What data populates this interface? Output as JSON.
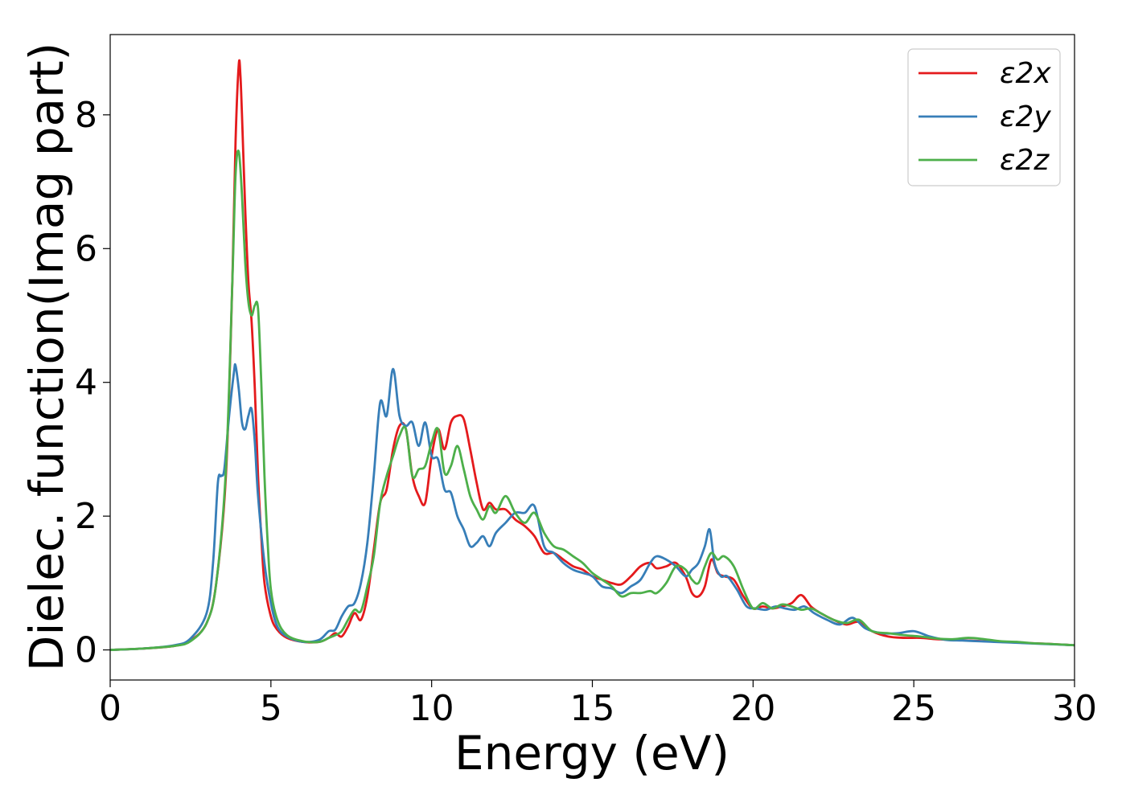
{
  "chart_data": {
    "type": "line",
    "title": "",
    "xlabel": "Energy (eV)",
    "ylabel": "Dielec. function(Imag part)",
    "xlim": [
      0,
      30
    ],
    "ylim": [
      -0.45,
      9.2
    ],
    "xticks": [
      0,
      5,
      10,
      15,
      20,
      25,
      30
    ],
    "yticks": [
      0,
      2,
      4,
      6,
      8
    ],
    "grid": false,
    "legend_position": "top-right",
    "series": [
      {
        "name": "ε2x",
        "color": "#e41a1c",
        "x": [
          0,
          1,
          2,
          2.5,
          3,
          3.3,
          3.6,
          3.8,
          3.9,
          4.0,
          4.05,
          4.1,
          4.2,
          4.3,
          4.4,
          4.5,
          4.6,
          4.7,
          4.8,
          5.0,
          5.2,
          5.5,
          6.0,
          6.5,
          6.8,
          7.0,
          7.2,
          7.4,
          7.6,
          7.8,
          8.0,
          8.2,
          8.4,
          8.6,
          8.8,
          9.0,
          9.2,
          9.4,
          9.6,
          9.8,
          10.0,
          10.2,
          10.4,
          10.6,
          10.8,
          11.0,
          11.2,
          11.4,
          11.6,
          11.8,
          12.0,
          12.3,
          12.6,
          12.9,
          13.2,
          13.5,
          13.8,
          14.1,
          14.4,
          14.7,
          15.0,
          15.3,
          15.6,
          15.9,
          16.2,
          16.5,
          16.8,
          17.0,
          17.3,
          17.6,
          17.9,
          18.1,
          18.3,
          18.5,
          18.7,
          18.9,
          19.1,
          19.4,
          19.7,
          20.0,
          20.3,
          20.6,
          20.9,
          21.2,
          21.5,
          21.8,
          22.1,
          22.5,
          22.9,
          23.3,
          23.7,
          24.2,
          24.7,
          25.2,
          25.7,
          26.2,
          26.7,
          27.2,
          27.7,
          28.2,
          28.7,
          29.2,
          29.6,
          30.0
        ],
        "values": [
          0.0,
          0.02,
          0.06,
          0.14,
          0.4,
          1.0,
          2.6,
          5.5,
          7.6,
          8.75,
          8.6,
          8.0,
          6.6,
          5.5,
          4.9,
          3.9,
          2.6,
          1.7,
          1.0,
          0.5,
          0.3,
          0.18,
          0.12,
          0.12,
          0.18,
          0.25,
          0.2,
          0.35,
          0.55,
          0.45,
          0.8,
          1.5,
          2.2,
          2.4,
          3.0,
          3.35,
          3.3,
          2.6,
          2.3,
          2.2,
          2.9,
          3.3,
          3.0,
          3.4,
          3.5,
          3.45,
          3.0,
          2.5,
          2.1,
          2.2,
          2.1,
          2.1,
          1.95,
          1.85,
          1.7,
          1.45,
          1.45,
          1.35,
          1.25,
          1.2,
          1.1,
          1.05,
          1.0,
          0.98,
          1.1,
          1.25,
          1.3,
          1.22,
          1.25,
          1.3,
          1.1,
          0.85,
          0.8,
          0.95,
          1.35,
          1.15,
          1.1,
          1.05,
          0.8,
          0.62,
          0.65,
          0.62,
          0.65,
          0.7,
          0.82,
          0.65,
          0.55,
          0.45,
          0.38,
          0.42,
          0.28,
          0.2,
          0.18,
          0.18,
          0.16,
          0.15,
          0.14,
          0.13,
          0.12,
          0.11,
          0.1,
          0.09,
          0.08,
          0.07
        ]
      },
      {
        "name": "ε2y",
        "color": "#377eb8",
        "x": [
          0,
          1,
          2,
          2.5,
          3,
          3.2,
          3.35,
          3.45,
          3.55,
          3.7,
          3.85,
          3.9,
          4.0,
          4.1,
          4.2,
          4.3,
          4.4,
          4.5,
          4.6,
          4.8,
          5.0,
          5.2,
          5.5,
          6.0,
          6.5,
          6.8,
          7.0,
          7.2,
          7.4,
          7.6,
          7.8,
          8.0,
          8.2,
          8.4,
          8.6,
          8.8,
          9.0,
          9.2,
          9.4,
          9.6,
          9.8,
          10.0,
          10.2,
          10.4,
          10.6,
          10.8,
          11.0,
          11.2,
          11.4,
          11.6,
          11.8,
          12.0,
          12.3,
          12.6,
          12.9,
          13.2,
          13.5,
          13.8,
          14.1,
          14.4,
          14.7,
          15.0,
          15.3,
          15.6,
          15.9,
          16.2,
          16.5,
          16.8,
          17.0,
          17.3,
          17.6,
          17.9,
          18.1,
          18.3,
          18.5,
          18.65,
          18.8,
          19.0,
          19.2,
          19.5,
          19.8,
          20.1,
          20.4,
          20.7,
          21.0,
          21.3,
          21.6,
          21.9,
          22.3,
          22.7,
          23.1,
          23.5,
          24.0,
          24.5,
          25.0,
          25.5,
          26.0,
          26.5,
          27.0,
          27.5,
          28.0,
          28.5,
          29.0,
          29.5,
          30.0
        ],
        "values": [
          0.0,
          0.02,
          0.07,
          0.17,
          0.55,
          1.3,
          2.5,
          2.6,
          2.7,
          3.5,
          4.15,
          4.25,
          3.9,
          3.4,
          3.3,
          3.5,
          3.6,
          3.1,
          2.3,
          1.3,
          0.7,
          0.35,
          0.2,
          0.12,
          0.15,
          0.28,
          0.3,
          0.5,
          0.65,
          0.7,
          1.0,
          1.6,
          2.6,
          3.7,
          3.5,
          4.2,
          3.5,
          3.35,
          3.4,
          3.05,
          3.4,
          2.9,
          2.85,
          2.4,
          2.35,
          2.0,
          1.8,
          1.55,
          1.6,
          1.7,
          1.55,
          1.75,
          1.9,
          2.05,
          2.05,
          2.15,
          1.55,
          1.45,
          1.3,
          1.2,
          1.15,
          1.1,
          0.95,
          0.92,
          0.85,
          0.95,
          1.05,
          1.3,
          1.4,
          1.35,
          1.25,
          1.1,
          1.2,
          1.3,
          1.55,
          1.8,
          1.3,
          1.1,
          1.1,
          0.9,
          0.65,
          0.62,
          0.6,
          0.65,
          0.62,
          0.6,
          0.65,
          0.55,
          0.45,
          0.38,
          0.48,
          0.32,
          0.25,
          0.25,
          0.28,
          0.2,
          0.15,
          0.14,
          0.13,
          0.12,
          0.11,
          0.1,
          0.09,
          0.08,
          0.07
        ]
      },
      {
        "name": "ε2z",
        "color": "#4daf4a",
        "x": [
          0,
          1,
          2,
          2.5,
          3,
          3.3,
          3.6,
          3.8,
          3.9,
          4.0,
          4.1,
          4.2,
          4.3,
          4.4,
          4.5,
          4.6,
          4.7,
          4.8,
          4.9,
          5.0,
          5.2,
          5.5,
          6.0,
          6.5,
          6.8,
          7.0,
          7.2,
          7.4,
          7.6,
          7.8,
          8.0,
          8.2,
          8.4,
          8.6,
          8.8,
          9.0,
          9.2,
          9.4,
          9.6,
          9.8,
          10.0,
          10.2,
          10.4,
          10.6,
          10.8,
          11.0,
          11.2,
          11.4,
          11.6,
          11.8,
          12.0,
          12.3,
          12.6,
          12.9,
          13.2,
          13.5,
          13.8,
          14.1,
          14.4,
          14.7,
          15.0,
          15.3,
          15.6,
          15.9,
          16.2,
          16.5,
          16.8,
          17.0,
          17.3,
          17.6,
          17.9,
          18.1,
          18.3,
          18.5,
          18.7,
          18.9,
          19.1,
          19.4,
          19.7,
          20.0,
          20.3,
          20.6,
          20.9,
          21.2,
          21.5,
          21.8,
          22.1,
          22.5,
          22.9,
          23.3,
          23.7,
          24.2,
          24.7,
          25.2,
          25.7,
          26.2,
          26.7,
          27.2,
          27.7,
          28.2,
          28.7,
          29.2,
          29.6,
          30.0
        ],
        "values": [
          0.0,
          0.02,
          0.06,
          0.13,
          0.4,
          1.0,
          2.7,
          5.5,
          7.1,
          7.45,
          6.8,
          5.8,
          5.2,
          5.0,
          5.15,
          5.1,
          4.0,
          2.6,
          1.6,
          0.9,
          0.45,
          0.22,
          0.13,
          0.12,
          0.18,
          0.22,
          0.28,
          0.45,
          0.6,
          0.58,
          0.95,
          1.4,
          2.2,
          2.6,
          2.9,
          3.2,
          3.3,
          2.6,
          2.7,
          2.75,
          3.1,
          3.3,
          2.65,
          2.75,
          3.05,
          2.7,
          2.3,
          2.1,
          1.95,
          2.15,
          2.05,
          2.3,
          2.05,
          1.9,
          2.05,
          1.75,
          1.55,
          1.5,
          1.4,
          1.3,
          1.15,
          1.05,
          0.95,
          0.8,
          0.85,
          0.85,
          0.88,
          0.85,
          1.0,
          1.25,
          1.2,
          1.05,
          1.0,
          1.25,
          1.45,
          1.35,
          1.4,
          1.25,
          0.9,
          0.62,
          0.7,
          0.62,
          0.68,
          0.65,
          0.6,
          0.62,
          0.55,
          0.45,
          0.4,
          0.45,
          0.28,
          0.25,
          0.22,
          0.2,
          0.17,
          0.16,
          0.18,
          0.16,
          0.13,
          0.12,
          0.1,
          0.09,
          0.08,
          0.07
        ]
      }
    ]
  }
}
